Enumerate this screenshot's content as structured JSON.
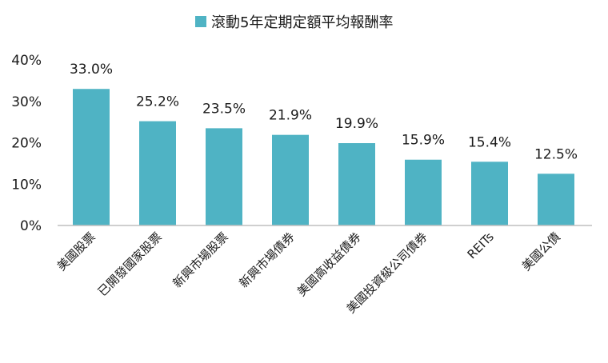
{
  "chart_data": {
    "type": "bar",
    "categories": [
      "美國股票",
      "已開發國家股票",
      "新興市場股票",
      "新興市場債券",
      "美國高收益債券",
      "美國投資級公司債券",
      "REITs",
      "美國公債"
    ],
    "series": [
      {
        "name": "滾動5年定期定額平均報酬率",
        "values": [
          33.0,
          25.2,
          23.5,
          21.9,
          19.9,
          15.9,
          15.4,
          12.5
        ],
        "labels": [
          "33.0%",
          "25.2%",
          "23.5%",
          "21.9%",
          "19.9%",
          "15.9%",
          "15.4%",
          "12.5%"
        ],
        "color": "#4fb3c4"
      }
    ],
    "ylim": [
      0,
      40
    ],
    "yticks": [
      0,
      10,
      20,
      30,
      40
    ],
    "ytick_labels": [
      "0%",
      "10%",
      "20%",
      "30%",
      "40%"
    ],
    "legend_position": "top-center",
    "grid": false,
    "axis_color": "#bfbfbf"
  }
}
